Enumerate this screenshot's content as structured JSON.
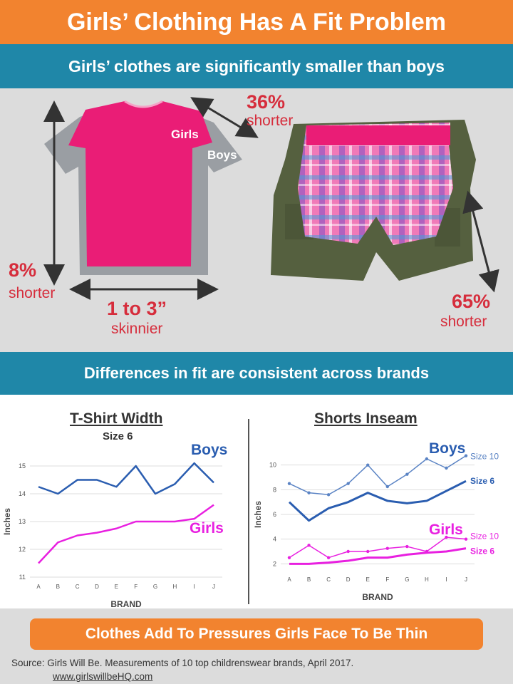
{
  "header": {
    "title": "Girls’ Clothing Has A Fit Problem",
    "subtitle_top": "Girls’ clothes are significantly smaller than boys",
    "subtitle_mid": "Differences in fit are consistent across brands"
  },
  "photo": {
    "shirt_girls_label": "Girls",
    "shirt_boys_label": "Boys",
    "sleeve_pct": "36%",
    "sleeve_word": "shorter",
    "length_pct": "8%",
    "length_word": "shorter",
    "width_value": "1 to 3”",
    "width_word": "skinnier",
    "inseam_pct": "65%",
    "inseam_word": "shorter"
  },
  "colors": {
    "orange": "#f2832f",
    "teal": "#1f87a8",
    "boys_blue": "#2a5db0",
    "girls_pink": "#e820e0",
    "red_text": "#d62d3c"
  },
  "chart_data": [
    {
      "type": "line",
      "title": "T-Shirt Width",
      "subtitle": "Size 6",
      "xlabel": "BRAND",
      "ylabel": "Inches",
      "categories": [
        "A",
        "B",
        "C",
        "D",
        "E",
        "F",
        "G",
        "H",
        "I",
        "J"
      ],
      "ylim": [
        11,
        15
      ],
      "yticks": [
        11,
        12,
        13,
        14,
        15
      ],
      "series": [
        {
          "name": "Boys",
          "color": "#2a5db0",
          "values": [
            14.25,
            14.0,
            14.5,
            14.5,
            14.25,
            15.0,
            14.0,
            14.35,
            15.1,
            14.4
          ]
        },
        {
          "name": "Girls",
          "color": "#e820e0",
          "values": [
            11.5,
            12.25,
            12.5,
            12.6,
            12.75,
            13.0,
            13.0,
            13.0,
            13.1,
            13.6
          ]
        }
      ]
    },
    {
      "type": "line",
      "title": "Shorts Inseam",
      "xlabel": "BRAND",
      "ylabel": "Inches",
      "categories": [
        "A",
        "B",
        "C",
        "D",
        "E",
        "F",
        "G",
        "H",
        "I",
        "J"
      ],
      "ylim": [
        1.5,
        10.5
      ],
      "yticks": [
        2,
        4,
        6,
        8,
        10
      ],
      "group_labels": [
        "Boys",
        "Girls"
      ],
      "series": [
        {
          "name": "Size 10",
          "group": "Boys",
          "color": "#5a83c4",
          "width": 1.5,
          "markers": true,
          "values": [
            8.5,
            7.75,
            7.6,
            8.5,
            10.0,
            8.25,
            9.25,
            10.5,
            9.75,
            10.75
          ]
        },
        {
          "name": "Size 6",
          "group": "Boys",
          "color": "#2a5db0",
          "width": 3,
          "markers": false,
          "values": [
            7.0,
            5.5,
            6.5,
            7.0,
            7.75,
            7.1,
            6.9,
            7.1,
            7.9,
            8.7
          ]
        },
        {
          "name": "Size 10",
          "group": "Girls",
          "color": "#e820e0",
          "width": 1.5,
          "markers": true,
          "values": [
            2.5,
            3.5,
            2.5,
            3.0,
            3.0,
            3.25,
            3.4,
            3.0,
            4.15,
            4.0
          ]
        },
        {
          "name": "Size 6",
          "group": "Girls",
          "color": "#e820e0",
          "width": 3,
          "markers": false,
          "values": [
            2.0,
            2.0,
            2.1,
            2.25,
            2.5,
            2.5,
            2.75,
            2.9,
            3.0,
            3.25
          ]
        }
      ]
    }
  ],
  "footer": {
    "cta": "Clothes Add To Pressures Girls Face To Be Thin",
    "source": "Source: Girls Will Be. Measurements of 10 top childrenswear brands, April 2017.",
    "url": "www.girlswillbeHQ.com"
  }
}
